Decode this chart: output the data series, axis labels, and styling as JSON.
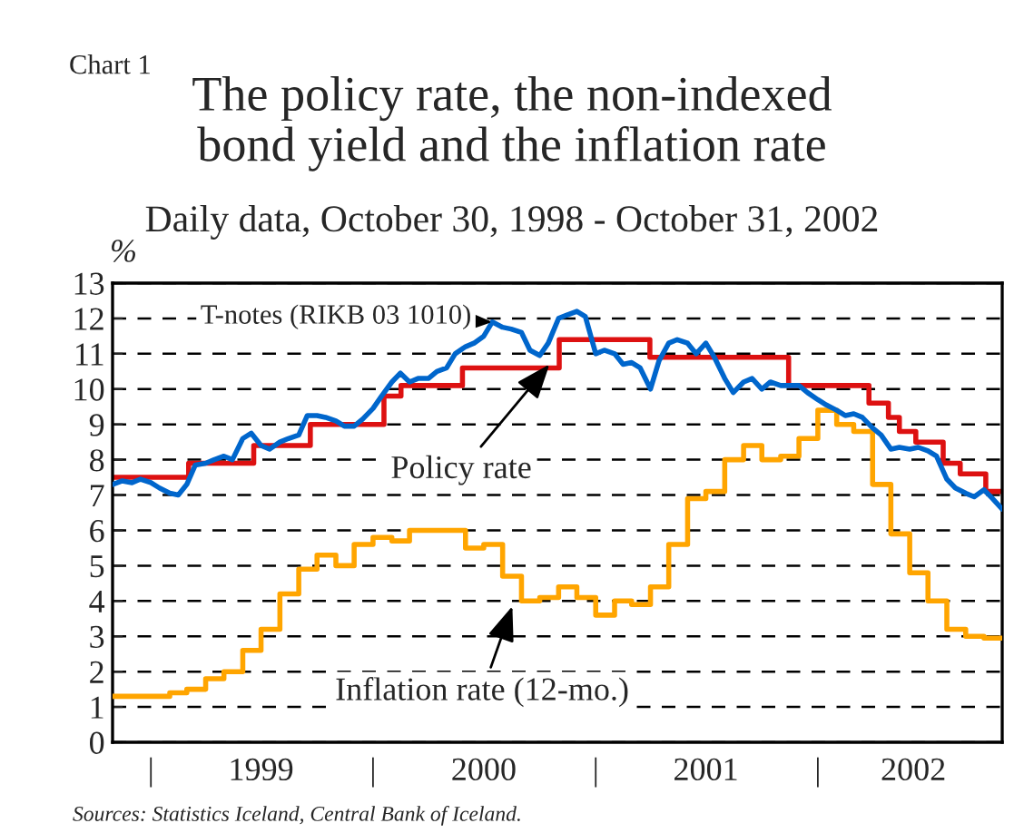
{
  "chart_data": {
    "type": "line",
    "title": "The policy rate, the non-indexed\nbond yield and the inflation rate",
    "subtitle": "Daily data, October 30, 1998 - October 31, 2002",
    "ylabel": "%",
    "annotations": [
      "Chart 1",
      {
        "text": "T-notes (RIKB 03 1010)",
        "x": "2000-07-15",
        "y": 11.9
      },
      {
        "text": "Policy rate",
        "x": "2000-10-17",
        "y": 10.7
      },
      {
        "text": "Inflation rate (12-mo.)",
        "x": "2000-08-17",
        "y": 3.85
      },
      "Sources: Statistics Iceland, Central Bank of Iceland."
    ],
    "series": [
      {
        "type": "step",
        "color": "#dd1111",
        "x": [
          "1998-10-30",
          "1999-03-04",
          "1999-06-19",
          "1999-09-20",
          "2000-01-19",
          "2000-02-16",
          "2000-05-27",
          "2000-11-02",
          "2001-03-31",
          "2001-11-14",
          "2002-03-26",
          "2002-04-27",
          "2002-05-15",
          "2002-06-11",
          "2002-07-26",
          "2002-08-23",
          "2002-10-04",
          "2002-10-31"
        ],
        "values": [
          7.5,
          7.9,
          8.4,
          9.0,
          9.8,
          10.1,
          10.6,
          11.4,
          10.9,
          10.1,
          9.6,
          9.2,
          8.8,
          8.5,
          7.9,
          7.6,
          7.1,
          7.1
        ]
      },
      {
        "type": "step",
        "color": "#ffa500",
        "x": [
          "1998-10-30",
          "1999-02-01",
          "1999-03-01",
          "1999-04-01",
          "1999-05-01",
          "1999-06-01",
          "1999-07-01",
          "1999-08-01",
          "1999-09-01",
          "1999-10-01",
          "1999-11-01",
          "1999-12-01",
          "2000-01-01",
          "2000-02-01",
          "2000-03-01",
          "2000-06-01",
          "2000-07-01",
          "2000-08-01",
          "2000-09-01",
          "2000-10-01",
          "2000-11-01",
          "2000-12-01",
          "2001-01-01",
          "2001-02-01",
          "2001-03-01",
          "2001-04-01",
          "2001-05-01",
          "2001-06-01",
          "2001-07-01",
          "2001-08-01",
          "2001-09-01",
          "2001-10-01",
          "2001-11-01",
          "2001-12-01",
          "2002-01-01",
          "2002-02-01",
          "2002-03-01",
          "2002-04-01",
          "2002-05-01",
          "2002-06-01",
          "2002-07-01",
          "2002-08-01",
          "2002-09-01",
          "2002-10-01",
          "2002-10-31"
        ],
        "values": [
          1.3,
          1.4,
          1.5,
          1.8,
          2.0,
          2.6,
          3.2,
          4.2,
          4.9,
          5.3,
          5.0,
          5.6,
          5.8,
          5.7,
          6.0,
          5.5,
          5.6,
          4.7,
          4.0,
          4.1,
          4.4,
          4.1,
          3.6,
          4.0,
          3.9,
          4.4,
          5.6,
          6.9,
          7.1,
          8.0,
          8.4,
          8.0,
          8.1,
          8.6,
          9.4,
          9.0,
          8.8,
          7.3,
          5.9,
          4.8,
          4.0,
          3.2,
          3.0,
          2.95,
          2.95
        ]
      },
      {
        "color": "#0066cc",
        "x": [
          "1998-10-30",
          "1998-11-15",
          "1998-12-01",
          "1998-12-15",
          "1999-01-01",
          "1999-01-15",
          "1999-02-01",
          "1999-02-15",
          "1999-03-01",
          "1999-03-15",
          "1999-04-01",
          "1999-04-15",
          "1999-05-01",
          "1999-05-15",
          "1999-06-01",
          "1999-06-15",
          "1999-07-01",
          "1999-07-15",
          "1999-08-01",
          "1999-08-15",
          "1999-09-01",
          "1999-09-15",
          "1999-10-01",
          "1999-10-15",
          "1999-11-01",
          "1999-11-15",
          "1999-12-01",
          "1999-12-15",
          "2000-01-01",
          "2000-01-15",
          "2000-02-01",
          "2000-02-15",
          "2000-03-01",
          "2000-03-15",
          "2000-04-01",
          "2000-04-15",
          "2000-05-01",
          "2000-05-15",
          "2000-06-01",
          "2000-06-15",
          "2000-07-01",
          "2000-07-15",
          "2000-08-01",
          "2000-08-15",
          "2000-09-01",
          "2000-09-15",
          "2000-10-01",
          "2000-10-15",
          "2000-11-01",
          "2000-11-15",
          "2000-12-01",
          "2000-12-15",
          "2001-01-01",
          "2001-01-15",
          "2001-02-01",
          "2001-02-15",
          "2001-03-01",
          "2001-03-15",
          "2001-04-01",
          "2001-04-15",
          "2001-05-01",
          "2001-05-15",
          "2001-06-01",
          "2001-06-15",
          "2001-07-01",
          "2001-07-15",
          "2001-08-01",
          "2001-08-15",
          "2001-09-01",
          "2001-09-15",
          "2001-10-01",
          "2001-10-15",
          "2001-11-01",
          "2001-11-15",
          "2001-12-01",
          "2001-12-15",
          "2002-01-01",
          "2002-01-15",
          "2002-02-01",
          "2002-02-15",
          "2002-03-01",
          "2002-03-15",
          "2002-04-01",
          "2002-04-15",
          "2002-05-01",
          "2002-05-15",
          "2002-06-01",
          "2002-06-15",
          "2002-07-01",
          "2002-07-15",
          "2002-08-01",
          "2002-08-15",
          "2002-09-01",
          "2002-09-15",
          "2002-10-01",
          "2002-10-15",
          "2002-10-31"
        ],
        "values": [
          7.3,
          7.4,
          7.35,
          7.45,
          7.35,
          7.2,
          7.05,
          7.0,
          7.3,
          7.85,
          7.9,
          8.0,
          8.1,
          8.0,
          8.6,
          8.75,
          8.4,
          8.3,
          8.5,
          8.6,
          8.7,
          9.25,
          9.25,
          9.2,
          9.1,
          8.95,
          8.95,
          9.15,
          9.45,
          9.8,
          10.2,
          10.45,
          10.2,
          10.3,
          10.3,
          10.5,
          10.6,
          11.0,
          11.2,
          11.3,
          11.5,
          11.9,
          11.75,
          11.7,
          11.6,
          11.1,
          10.95,
          11.3,
          12.0,
          12.1,
          12.2,
          12.05,
          11.0,
          11.1,
          11.0,
          10.7,
          10.75,
          10.6,
          10.0,
          10.8,
          11.3,
          11.4,
          11.3,
          11.0,
          11.3,
          10.9,
          10.3,
          9.9,
          10.2,
          10.3,
          10.0,
          10.2,
          10.1,
          10.1,
          10.1,
          9.9,
          9.7,
          9.55,
          9.4,
          9.25,
          9.3,
          9.2,
          8.9,
          8.7,
          8.3,
          8.35,
          8.3,
          8.35,
          8.25,
          8.1,
          7.45,
          7.2,
          7.05,
          6.95,
          7.15,
          6.9,
          6.6
        ]
      }
    ],
    "xlim": [
      "1998-10-30",
      "2002-10-31"
    ],
    "xticks": [
      {
        "value": "1999-01-01",
        "label": "|"
      },
      {
        "value": "1999-07-01",
        "label": "1999"
      },
      {
        "value": "2000-01-01",
        "label": "|"
      },
      {
        "value": "2000-07-01",
        "label": "2000"
      },
      {
        "value": "2001-01-01",
        "label": "|"
      },
      {
        "value": "2001-07-01",
        "label": "2001"
      },
      {
        "value": "2002-01-01",
        "label": "|"
      },
      {
        "value": "2002-06-07",
        "label": "2002"
      }
    ],
    "ylim": [
      0,
      13
    ],
    "yticks": [
      0,
      1,
      2,
      3,
      4,
      5,
      6,
      7,
      8,
      9,
      10,
      11,
      12,
      13
    ],
    "grid": "y",
    "line_style": "solid"
  }
}
